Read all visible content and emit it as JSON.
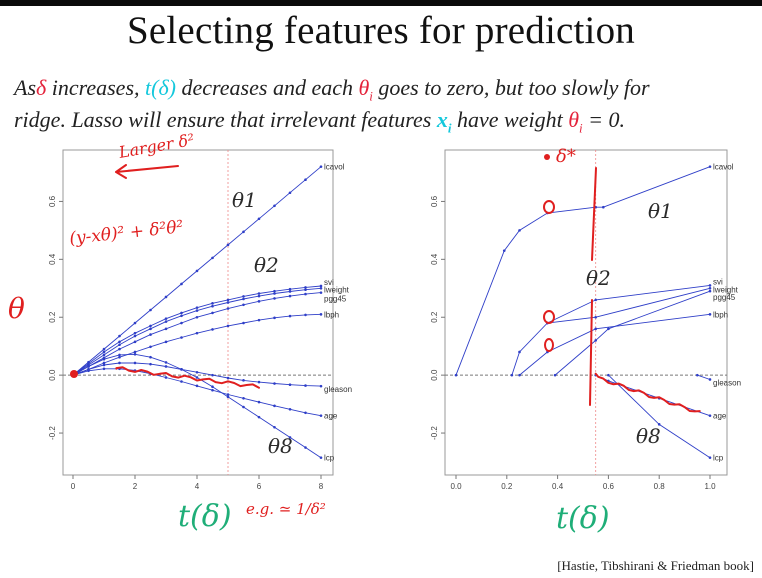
{
  "title": "Selecting features for prediction",
  "subtitle": {
    "line1": {
      "a": "As",
      "delta": "δ",
      "b": " increases, ",
      "t_delta": "t(δ)",
      "c": " decreases and each ",
      "theta_i": "θ",
      "theta_sub": "i",
      "d": " goes to zero, but too slowly for"
    },
    "line2": {
      "a": "ridge. Lasso will ensure that irrelevant features ",
      "x_i": "x",
      "x_sub": "i",
      "b": " have weight ",
      "theta_i": "θ",
      "theta_sub": "i",
      "c": " = 0."
    }
  },
  "citation": "[Hastie, Tibshirani & Friedman book]",
  "annotations": {
    "larger_delta": "Larger δ²",
    "ridge_formula": "(y-xθ)² + δ²θ²",
    "theta_axis": "θ",
    "theta1_left": "θ1",
    "theta2_left": "θ2",
    "theta8_left": "θ8",
    "theta1_right": "θ1",
    "theta2_right": "θ2",
    "theta8_right": "θ8",
    "delta_star": "δ*",
    "t_delta_left": "t(δ)",
    "approx_left": "e.g. ≃ 1/δ²",
    "t_delta_right": "t(δ)"
  },
  "colors": {
    "path": "#2f3fc8",
    "ink": "#e01f1f",
    "green": "#1fae78",
    "subtitle_red": "#e4233b",
    "subtitle_cyan": "#14c8dc"
  },
  "chart_data": [
    {
      "type": "line",
      "panel": "ridge",
      "xlim": [
        0,
        8
      ],
      "ylim": [
        -0.3,
        0.75
      ],
      "x_ticks": [
        "0",
        "2",
        "4",
        "6",
        "8"
      ],
      "y_ticks": [
        "-0.2",
        "0.0",
        "0.2",
        "0.4",
        "0.6"
      ],
      "x": [
        0,
        0.5,
        1,
        1.5,
        2,
        2.5,
        3,
        3.5,
        4,
        4.5,
        5,
        5.5,
        6,
        6.5,
        7,
        7.5,
        8
      ],
      "series": [
        {
          "name": "lcavol",
          "values": [
            0,
            0.045,
            0.09,
            0.135,
            0.18,
            0.225,
            0.27,
            0.315,
            0.36,
            0.405,
            0.45,
            0.495,
            0.54,
            0.585,
            0.63,
            0.675,
            0.72
          ]
        },
        {
          "name": "svi",
          "values": [
            0,
            0.04,
            0.08,
            0.115,
            0.145,
            0.17,
            0.195,
            0.215,
            0.233,
            0.248,
            0.26,
            0.272,
            0.282,
            0.29,
            0.297,
            0.303,
            0.308
          ]
        },
        {
          "name": "lweight",
          "values": [
            0,
            0.035,
            0.07,
            0.105,
            0.135,
            0.16,
            0.185,
            0.205,
            0.223,
            0.238,
            0.251,
            0.263,
            0.273,
            0.282,
            0.289,
            0.295,
            0.3
          ]
        },
        {
          "name": "pgg45",
          "values": [
            0,
            0.03,
            0.06,
            0.09,
            0.115,
            0.14,
            0.16,
            0.18,
            0.2,
            0.215,
            0.23,
            0.243,
            0.255,
            0.265,
            0.273,
            0.28,
            0.285
          ]
        },
        {
          "name": "lbph",
          "values": [
            0,
            0.02,
            0.042,
            0.062,
            0.08,
            0.098,
            0.115,
            0.13,
            0.145,
            0.158,
            0.17,
            0.18,
            0.19,
            0.198,
            0.204,
            0.208,
            0.21
          ]
        },
        {
          "name": "gleason",
          "values": [
            0,
            0.02,
            0.035,
            0.042,
            0.042,
            0.038,
            0.03,
            0.02,
            0.01,
            0,
            -0.01,
            -0.018,
            -0.024,
            -0.029,
            -0.033,
            -0.036,
            -0.038
          ]
        },
        {
          "name": "age",
          "values": [
            0,
            0.015,
            0.022,
            0.022,
            0.016,
            0.005,
            -0.008,
            -0.022,
            -0.037,
            -0.052,
            -0.067,
            -0.08,
            -0.093,
            -0.106,
            -0.118,
            -0.13,
            -0.14
          ]
        },
        {
          "name": "lcp",
          "values": [
            0,
            0.03,
            0.055,
            0.07,
            0.072,
            0.062,
            0.044,
            0.02,
            -0.008,
            -0.04,
            -0.075,
            -0.11,
            -0.145,
            -0.18,
            -0.215,
            -0.25,
            -0.285
          ]
        }
      ],
      "annotations": {
        "reference_x": 5.0
      }
    },
    {
      "type": "line",
      "panel": "lasso",
      "xlim": [
        0,
        1
      ],
      "ylim": [
        -0.3,
        0.75
      ],
      "x_ticks": [
        "0.0",
        "0.2",
        "0.4",
        "0.6",
        "0.8",
        "1.0"
      ],
      "y_ticks": [
        "-0.2",
        "0.0",
        "0.2",
        "0.4",
        "0.6"
      ],
      "series": [
        {
          "name": "lcavol",
          "points": [
            [
              0,
              0
            ],
            [
              0.19,
              0.43
            ],
            [
              0.25,
              0.5
            ],
            [
              0.36,
              0.56
            ],
            [
              0.55,
              0.58
            ],
            [
              0.58,
              0.58
            ],
            [
              1.0,
              0.72
            ]
          ]
        },
        {
          "name": "svi",
          "points": [
            [
              0.36,
              0.18
            ],
            [
              0.55,
              0.26
            ],
            [
              1.0,
              0.31
            ]
          ]
        },
        {
          "name": "lweight",
          "points": [
            [
              0.22,
              0
            ],
            [
              0.25,
              0.08
            ],
            [
              0.36,
              0.18
            ],
            [
              0.55,
              0.2
            ],
            [
              1.0,
              0.3
            ]
          ]
        },
        {
          "name": "pgg45",
          "points": [
            [
              0.39,
              0
            ],
            [
              0.55,
              0.12
            ],
            [
              0.6,
              0.16
            ],
            [
              1.0,
              0.29
            ]
          ]
        },
        {
          "name": "lbph",
          "points": [
            [
              0.25,
              0
            ],
            [
              0.36,
              0.08
            ],
            [
              0.55,
              0.16
            ],
            [
              1.0,
              0.21
            ]
          ]
        },
        {
          "name": "gleason",
          "points": [
            [
              0.95,
              0
            ],
            [
              1.0,
              -0.015
            ]
          ]
        },
        {
          "name": "age",
          "points": [
            [
              0.55,
              0
            ],
            [
              0.6,
              -0.02
            ],
            [
              0.8,
              -0.08
            ],
            [
              1.0,
              -0.14
            ]
          ]
        },
        {
          "name": "lcp",
          "points": [
            [
              0.6,
              0
            ],
            [
              0.8,
              -0.17
            ],
            [
              1.0,
              -0.285
            ]
          ]
        }
      ],
      "annotations": {
        "reference_x": 0.55
      }
    }
  ]
}
